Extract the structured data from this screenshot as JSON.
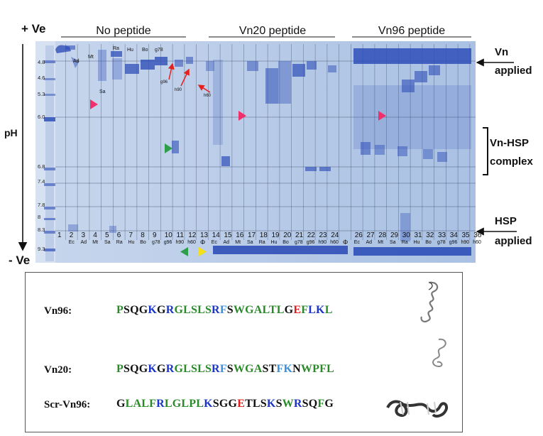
{
  "figure": {
    "gel": {
      "pos_electrode": "+ Ve",
      "neg_electrode": "- Ve",
      "axis_label": "pH",
      "groups": [
        "No peptide",
        "Vn20 peptide",
        "Vn96 peptide"
      ],
      "ph_ticks": [
        "4.8",
        "4.6",
        "5.3",
        "6.0",
        "6.8",
        "7.4",
        "7.8",
        "8",
        "8.3",
        "9.3"
      ],
      "lane_numbers": [
        "1",
        "2",
        "3",
        "4",
        "5",
        "6",
        "7",
        "8",
        "9",
        "10",
        "11",
        "12",
        "13",
        "14",
        "15",
        "16",
        "17",
        "18",
        "19",
        "20",
        "21",
        "22",
        "23",
        "24",
        "26",
        "27",
        "28",
        "29",
        "30",
        "31",
        "32",
        "33",
        "34",
        "35",
        "36"
      ],
      "lane_subs": [
        "Ec",
        "Ad",
        "Mt",
        "Sa",
        "Ra",
        "Hu",
        "Bo",
        "g78",
        "g96",
        "h90",
        "h60",
        "Ec",
        "Ad",
        "Mt",
        "Sa",
        "Ra",
        "Hu",
        "Bo",
        "g78",
        "g96",
        "h90",
        "h60",
        "Ec",
        "Ad",
        "Mt",
        "Sa",
        "Ra",
        "Hu",
        "Bo",
        "g78",
        "g96",
        "h90",
        "h60"
      ],
      "top_lane_labels": [
        "Ra",
        "Hu",
        "Bo",
        "g78",
        "Ad",
        "Mt",
        "Sa",
        "g96",
        "h90",
        "h60"
      ],
      "lane25_symbol": "Φ",
      "lane13_symbol": "Φ",
      "right_labels": {
        "vn_applied": [
          "Vn",
          "applied"
        ],
        "complex": [
          "Vn-HSP",
          "complex"
        ],
        "hsp_applied": [
          "HSP",
          "applied"
        ]
      },
      "colors": {
        "gel_bg": "#b9cde8",
        "band": "#2f4fb8",
        "pink_marker": "#f0306c",
        "green_marker": "#2e9e4a",
        "yellow_marker": "#f3e01a",
        "red_arrow": "#e3211f"
      }
    },
    "sequences": [
      {
        "name": "Vn96:",
        "segments": [
          [
            "P",
            "g"
          ],
          [
            "SQG",
            "k"
          ],
          [
            "K",
            "b"
          ],
          [
            "G",
            "k"
          ],
          [
            "R",
            "b"
          ],
          [
            "GLSLS",
            "g"
          ],
          [
            "R",
            "b"
          ],
          [
            "F",
            "l"
          ],
          [
            "S",
            "k"
          ],
          [
            "W",
            "g"
          ],
          [
            "GALTL",
            "g"
          ],
          [
            "G",
            "k"
          ],
          [
            "E",
            "r"
          ],
          [
            "F",
            "g"
          ],
          [
            "LK",
            "b"
          ],
          [
            "L",
            "g"
          ]
        ]
      },
      {
        "name": "Vn20:",
        "segments": [
          [
            "P",
            "g"
          ],
          [
            "SQG",
            "k"
          ],
          [
            "K",
            "b"
          ],
          [
            "G",
            "k"
          ],
          [
            "R",
            "b"
          ],
          [
            "GLSLS",
            "g"
          ],
          [
            "R",
            "b"
          ],
          [
            "F",
            "l"
          ],
          [
            "S",
            "k"
          ],
          [
            "W",
            "g"
          ],
          [
            "GA",
            "g"
          ],
          [
            "ST",
            "k"
          ],
          [
            "FK",
            "l"
          ],
          [
            "N",
            "k"
          ],
          [
            "WPFL",
            "g"
          ]
        ]
      },
      {
        "name": "Scr-Vn96:",
        "segments": [
          [
            "G",
            "k"
          ],
          [
            "LALF",
            "g"
          ],
          [
            "R",
            "b"
          ],
          [
            "LGLPL",
            "g"
          ],
          [
            "K",
            "b"
          ],
          [
            "SGG",
            "k"
          ],
          [
            "E",
            "r"
          ],
          [
            "TLS",
            "k"
          ],
          [
            "K",
            "b"
          ],
          [
            "S",
            "k"
          ],
          [
            "W",
            "g"
          ],
          [
            "R",
            "b"
          ],
          [
            "SQ",
            "k"
          ],
          [
            "F",
            "g"
          ],
          [
            "G",
            "k"
          ]
        ]
      }
    ]
  }
}
